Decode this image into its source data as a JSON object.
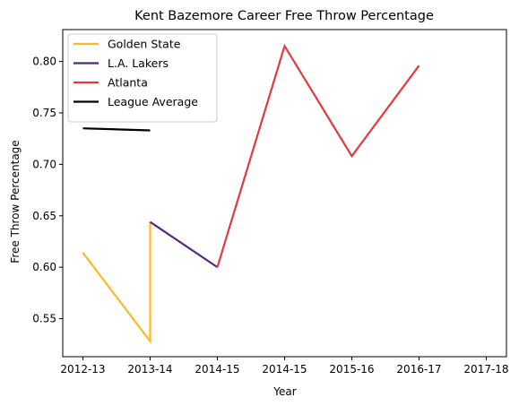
{
  "chart_data": {
    "type": "line",
    "title": "Kent Bazemore Career Free Throw Percentage",
    "xlabel": "Year",
    "ylabel": "Free Throw Percentage",
    "x_tick_labels": [
      "2012-13",
      "2013-14",
      "2014-15",
      "2014-15",
      "2015-16",
      "2016-17",
      "2017-18"
    ],
    "x_ticks": [
      0,
      1,
      2,
      3,
      4,
      5,
      6
    ],
    "y_ticks": [
      0.55,
      0.6,
      0.65,
      0.7,
      0.75,
      0.8
    ],
    "xlim": [
      -0.3,
      6.3
    ],
    "ylim": [
      0.513,
      0.831
    ],
    "legend_position": "top-left",
    "grid": false,
    "series": [
      {
        "name": "Golden State",
        "color": "#FDB927",
        "points": [
          [
            0,
            0.614
          ],
          [
            1,
            0.528
          ],
          [
            1,
            0.644
          ]
        ]
      },
      {
        "name": "L.A. Lakers",
        "color": "#552583",
        "points": [
          [
            1,
            0.644
          ],
          [
            2,
            0.6
          ]
        ]
      },
      {
        "name": "Atlanta",
        "color": "#E03A3E",
        "points": [
          [
            2,
            0.6
          ],
          [
            3,
            0.815
          ],
          [
            4,
            0.708
          ],
          [
            5,
            0.796
          ]
        ]
      },
      {
        "name": "League Average",
        "color": "#000000",
        "points": [
          [
            0,
            0.735
          ],
          [
            1,
            0.733
          ]
        ]
      }
    ]
  }
}
